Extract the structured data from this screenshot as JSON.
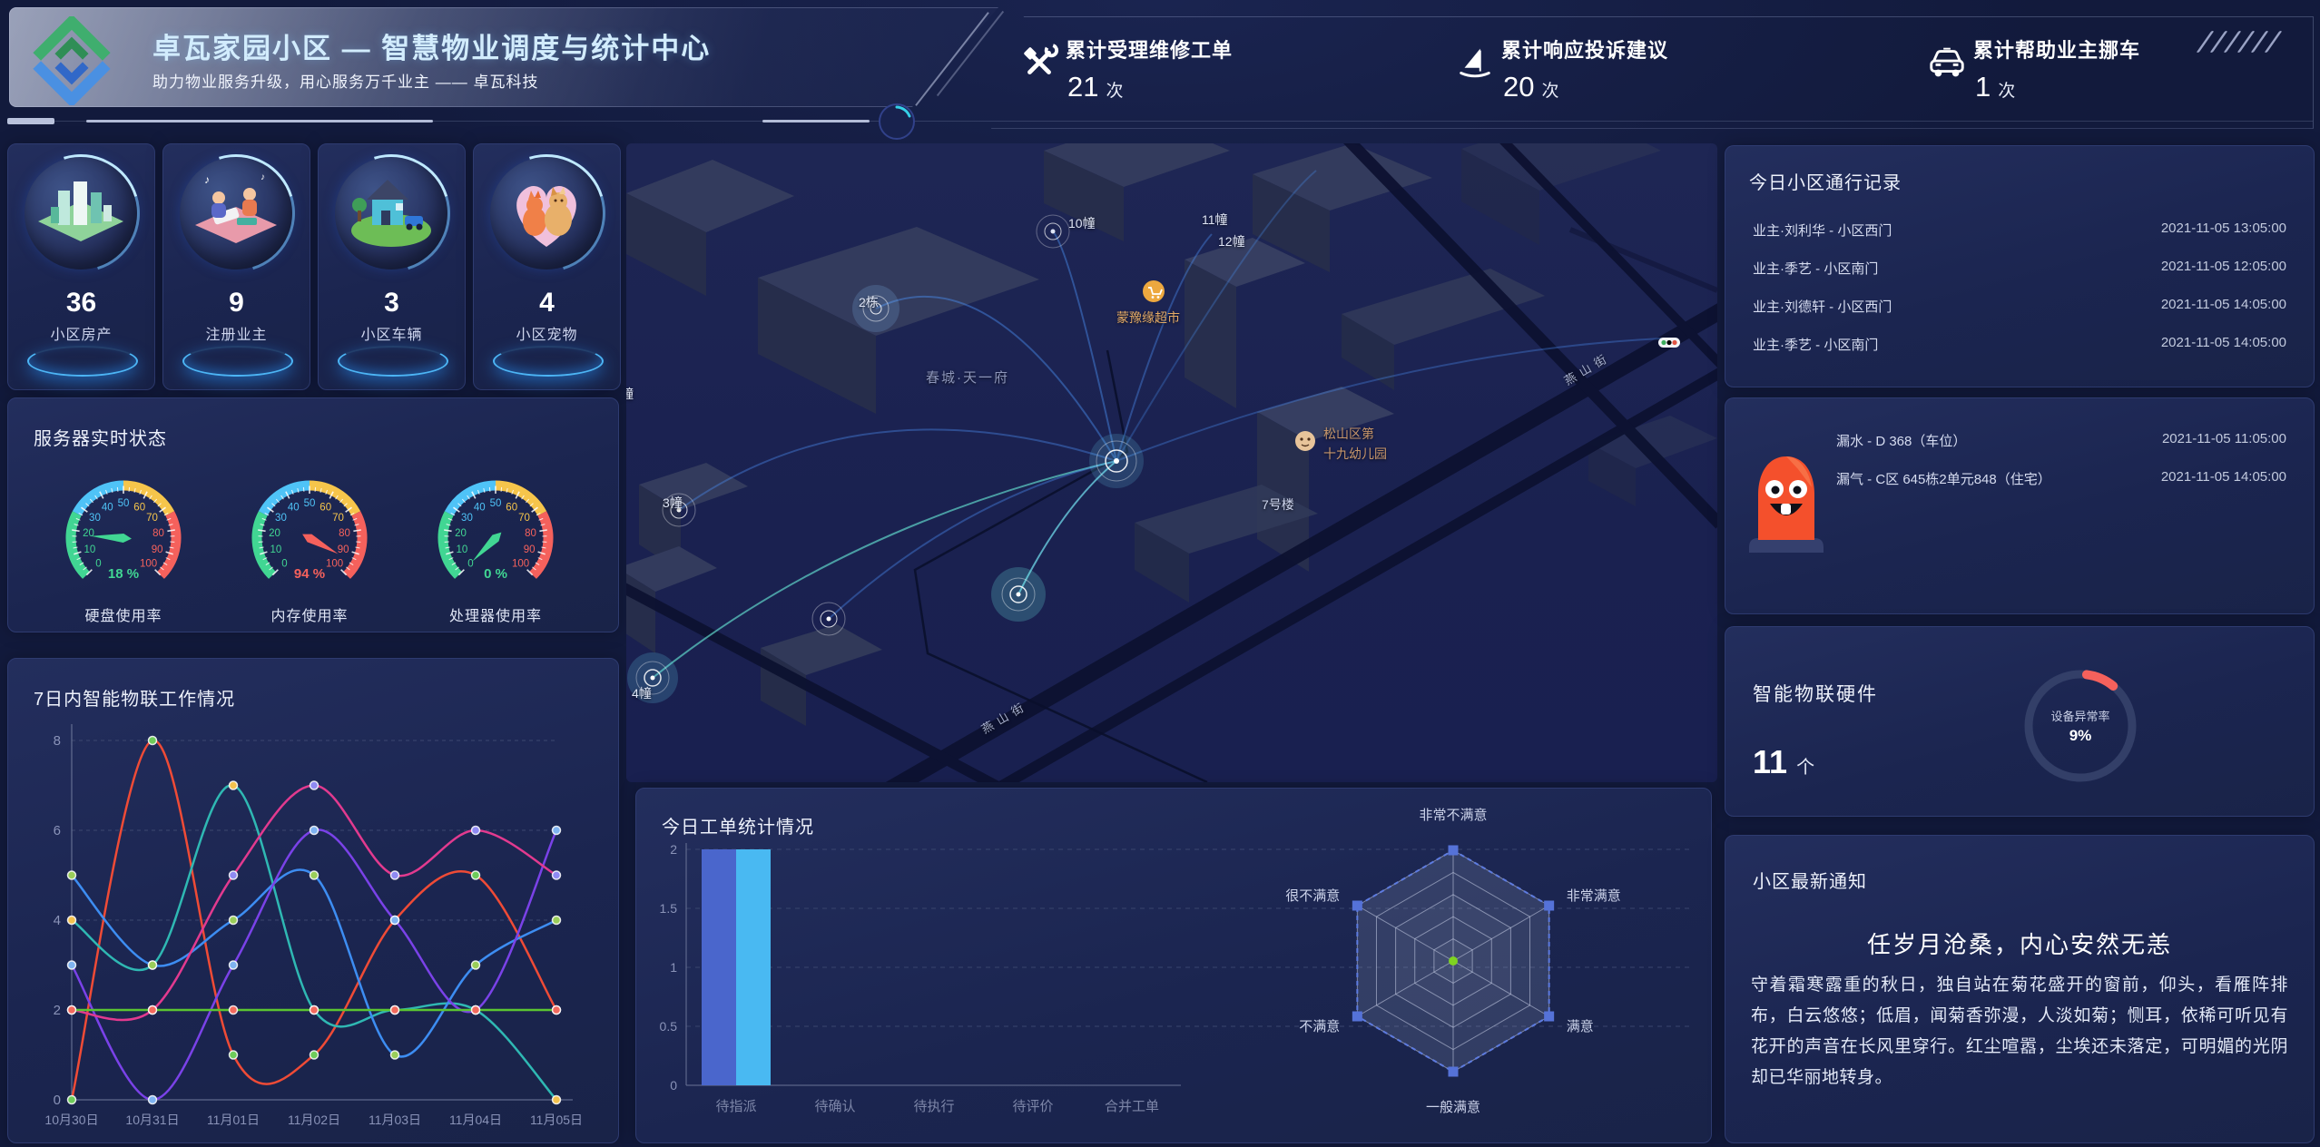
{
  "header": {
    "title": "卓瓦家园小区 — 智慧物业调度与统计中心",
    "subtitle": "助力物业服务升级，用心服务万千业主 —— 卓瓦科技"
  },
  "stats": [
    {
      "icon": "wrench-icon",
      "label": "累计受理维修工单",
      "value": "21",
      "unit": "次"
    },
    {
      "icon": "complaint-icon",
      "label": "累计响应投诉建议",
      "value": "20",
      "unit": "次"
    },
    {
      "icon": "car-icon",
      "label": "累计帮助业主挪车",
      "value": "1",
      "unit": "次"
    }
  ],
  "summary_cards": [
    {
      "icon": "city-illustration",
      "value": "36",
      "label": "小区房产"
    },
    {
      "icon": "owners-illustration",
      "value": "9",
      "label": "注册业主"
    },
    {
      "icon": "vehicle-illustration",
      "value": "3",
      "label": "小区车辆"
    },
    {
      "icon": "pets-illustration",
      "value": "4",
      "label": "小区宠物"
    }
  ],
  "map": {
    "b1": "幢",
    "b2": "2栋",
    "b3": "3幢",
    "b4": "4幢",
    "b7": "7号楼",
    "b10": "10幢",
    "b11": "11幢",
    "b12": "12幢",
    "estate": "春城·天一府",
    "market": "蒙豫缘超市",
    "kindergarten_line1": "松山区第",
    "kindergarten_line2": "十九幼儿园",
    "road": "燕山街"
  },
  "records": {
    "title": "今日小区通行记录",
    "rows": [
      {
        "who": "业主·刘利华 - 小区西门",
        "time": "2021-11-05 13:05:00"
      },
      {
        "who": "业主·季艺 - 小区南门",
        "time": "2021-11-05 12:05:00"
      },
      {
        "who": "业主·刘德轩 - 小区西门",
        "time": "2021-11-05 14:05:00"
      },
      {
        "who": "业主·季艺 - 小区南门",
        "time": "2021-11-05 14:05:00"
      }
    ]
  },
  "alarms": {
    "rows": [
      {
        "what": "漏水 - D 368（车位）",
        "time": "2021-11-05 11:05:00"
      },
      {
        "what": "漏气 - C区 645栋2单元848（住宅）",
        "time": "2021-11-05 14:05:00"
      }
    ]
  },
  "hardware": {
    "title": "智能物联硬件",
    "value": "11",
    "unit": "个"
  },
  "notice": {
    "title": "小区最新通知",
    "heading": "任岁月沧桑，内心安然无恙",
    "body": "守着霜寒露重的秋日，独自站在菊花盛开的窗前，仰头，看雁阵排布，白云悠悠；低眉，闻菊香弥漫，人淡如菊；恻耳，依稀可听见有花开的声音在长风里穿行。红尘喧嚣，尘埃还未落定，可明媚的光阴却已华丽地转身。"
  },
  "chart_data": [
    {
      "id": "iot-line",
      "type": "line",
      "title": "7日内智能物联工作情况",
      "categories": [
        "10月30日",
        "10月31日",
        "11月01日",
        "11月02日",
        "11月03日",
        "11月04日",
        "11月05日"
      ],
      "ylim": [
        0,
        8
      ],
      "yticks": [
        0,
        2,
        4,
        6,
        8
      ],
      "grid": "dashed",
      "legend": "none",
      "series": [
        {
          "name": "red",
          "color": "#ef4b36",
          "marker": "#6ecb5a",
          "values": [
            0,
            8,
            1,
            1,
            4,
            5,
            2
          ]
        },
        {
          "name": "teal",
          "color": "#2fb8b3",
          "marker": "#f2c14e",
          "values": [
            4,
            3,
            7,
            2,
            2,
            2,
            0
          ]
        },
        {
          "name": "blue",
          "color": "#3d8df2",
          "marker": "#9acd5a",
          "values": [
            5,
            3,
            4,
            5,
            1,
            3,
            4
          ]
        },
        {
          "name": "purple",
          "color": "#7a42e8",
          "marker": "#7fb3f0",
          "values": [
            3,
            0,
            3,
            6,
            4,
            2,
            6
          ]
        },
        {
          "name": "magenta",
          "color": "#e23a8f",
          "marker": "#8f8af2",
          "values": [
            2,
            2,
            5,
            7,
            5,
            6,
            5
          ]
        },
        {
          "name": "green",
          "color": "#5bc531",
          "marker": "#f26a5e",
          "values": [
            2,
            2,
            2,
            2,
            2,
            2,
            2
          ]
        }
      ]
    },
    {
      "id": "workorder-bar",
      "type": "bar",
      "title": "今日工单统计情况",
      "categories": [
        "待指派",
        "待确认",
        "待执行",
        "待评价",
        "合并工单"
      ],
      "ylim": [
        0,
        2
      ],
      "yticks": [
        0,
        0.5,
        1,
        1.5,
        2
      ],
      "grid": "dashed",
      "legend": "none",
      "series": [
        {
          "name": "indigo",
          "color": "#4a66cc",
          "values": [
            2,
            0,
            0,
            0,
            0
          ]
        },
        {
          "name": "sky",
          "color": "#49b9f2",
          "values": [
            2,
            0,
            0,
            0,
            0
          ]
        }
      ]
    },
    {
      "id": "satisfaction-radar",
      "type": "radar",
      "levels": 5,
      "axes": [
        "非常不满意",
        "非常满意",
        "满意",
        "一般满意",
        "不满意",
        "很不满意"
      ],
      "series": [
        {
          "name": "outer-dashed",
          "color": "#5d7be0",
          "values": [
            5,
            5,
            5,
            5,
            5,
            5
          ]
        },
        {
          "name": "center-dot",
          "color": "#7ed321",
          "values": [
            0,
            0,
            0,
            0,
            0,
            0
          ]
        }
      ]
    },
    {
      "id": "server-gauges",
      "type": "gauge",
      "title": "服务器实时状态",
      "min": 0,
      "max": 100,
      "bands": [
        [
          0,
          27,
          "#41d693"
        ],
        [
          27,
          50,
          "#4fc3f7"
        ],
        [
          50,
          73,
          "#f6c54b"
        ],
        [
          73,
          100,
          "#f5615c"
        ]
      ],
      "gauges": [
        {
          "label": "硬盘使用率",
          "value": 18
        },
        {
          "label": "内存使用率",
          "value": 94
        },
        {
          "label": "处理器使用率",
          "value": 0
        }
      ]
    },
    {
      "id": "device-donut",
      "type": "donut",
      "label": "设备异常率",
      "value": 9,
      "color": "#f5615c",
      "track": "#333f68"
    }
  ]
}
